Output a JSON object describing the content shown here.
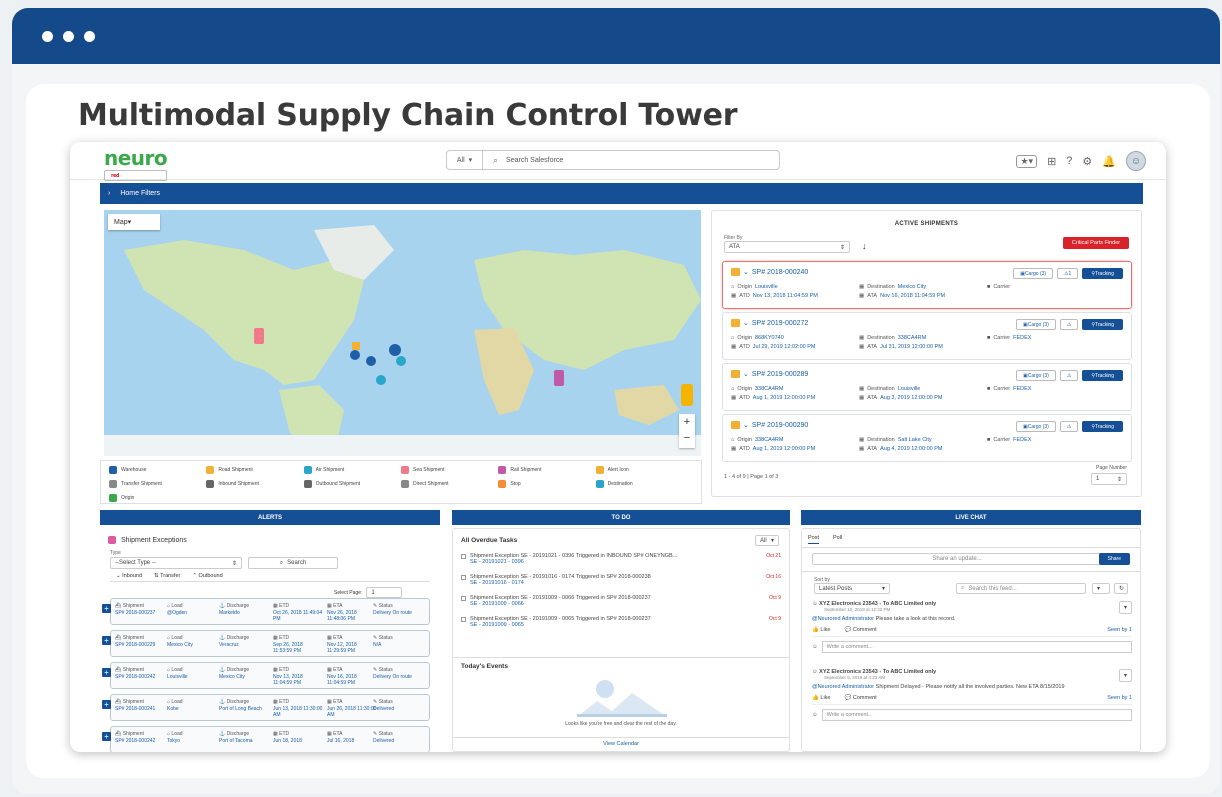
{
  "window": {
    "controls": [
      "dot",
      "dot",
      "dot"
    ]
  },
  "page_title": "Multimodal Supply Chain Control Tower",
  "app": {
    "logo_part1": "neuro",
    "logo_part2": "red",
    "search": {
      "scope": "All",
      "placeholder": "Search Salesforce"
    },
    "home_filters": "Home Filters"
  },
  "map": {
    "label": "Map",
    "zoom_in": "+",
    "zoom_out": "−",
    "legend": [
      "Warehouse",
      "Road Shipment",
      "Air Shipment",
      "Sea Shipment",
      "Rail Shipment",
      "Alert Icon",
      "Transfer Shipment",
      "Inbound Shipment",
      "Outbound Shipment",
      "Direct Shipment",
      "Stop",
      "Destination",
      "Origin"
    ],
    "legend_colors": [
      "#1f5fa8",
      "#f2b134",
      "#2ba6cb",
      "#f07a8a",
      "#c05aa8",
      "#f2b134",
      "#888888",
      "#666666",
      "#666666",
      "#888888",
      "#f28c38",
      "#2ba6cb",
      "#3aa84b"
    ]
  },
  "active_shipments": {
    "title": "ACTIVE SHIPMENTS",
    "filter_label": "Filter By",
    "filter_value": "ATA",
    "critical_button": "Critical Parts Finder",
    "rows": [
      {
        "id": "SP# 2018-000240",
        "cargo": "Cargo (3)",
        "alert": "1",
        "origin_label": "Origin",
        "origin": "Louisville",
        "dest_label": "Destination",
        "dest": "Mexico City",
        "atd_label": "ATD",
        "atd": "Nov 13, 2018 11:04:59 PM",
        "ata_label": "ATA",
        "ata": "Nov 16, 2018 11:04:59 PM",
        "carrier_label": "Carrier",
        "carrier": "",
        "highlight": true
      },
      {
        "id": "SP# 2019-000272",
        "cargo": "Cargo (3)",
        "alert": "",
        "origin_label": "Origin",
        "origin": "868KY0740",
        "dest_label": "Destination",
        "dest": "338CA4RM",
        "atd_label": "ATD",
        "atd": "Jul 29, 2019 12:02:00 PM",
        "ata_label": "ATA",
        "ata": "Jul 31, 2019 12:00:00 PM",
        "carrier_label": "Carrier",
        "carrier": "FEDEX",
        "highlight": false
      },
      {
        "id": "SP# 2019-000289",
        "cargo": "Cargo (3)",
        "alert": "",
        "origin_label": "Origin",
        "origin": "338CA4RM",
        "dest_label": "Destination",
        "dest": "Louisville",
        "atd_label": "ATD",
        "atd": "Aug 1, 2019 12:00:00 PM",
        "ata_label": "ATA",
        "ata": "Aug 3, 2019 12:00:00 PM",
        "carrier_label": "Carrier",
        "carrier": "FEDEX",
        "highlight": false
      },
      {
        "id": "SP# 2019-000290",
        "cargo": "Cargo (3)",
        "alert": "",
        "origin_label": "Origin",
        "origin": "338CA4RM",
        "dest_label": "Destination",
        "dest": "Salt Lake City",
        "atd_label": "ATD",
        "atd": "Aug 1, 2019 12:00:00 PM",
        "ata_label": "ATA",
        "ata": "Aug 4, 2019 12:00:00 PM",
        "carrier_label": "Carrier",
        "carrier": "FEDEX",
        "highlight": false
      }
    ],
    "tracking": "Tracking",
    "pagination": "1 - 4 of 9 | Page 1 of 3",
    "page_number_label": "Page Number",
    "page_number": "1"
  },
  "alerts": {
    "header": "ALERTS",
    "title": "Shipment Exceptions",
    "type_label": "Type",
    "type_value": "--Select Type --",
    "search": "Search",
    "tabs": [
      "Inbound",
      "Transfer",
      "Outbound"
    ],
    "select_page_label": "Select Page:",
    "select_page": "1",
    "rows": [
      {
        "shipment": "SP# 2018-000237",
        "load": "@Ogden",
        "discharge": "Marketdo",
        "etd": "Oct 26, 2018 11:49:04 PM",
        "eta": "Nov 26, 2018 11:48:06 PM",
        "status": "Delivery On route"
      },
      {
        "shipment": "SP# 2018-000229",
        "load": "Mexico City",
        "discharge": "Veracruz",
        "etd": "Sep 26, 2018 11:53:59 PM",
        "eta": "Nov 12, 2018 11:29:59 PM",
        "status": "N/A"
      },
      {
        "shipment": "SP# 2018-000242",
        "load": "Louisville",
        "discharge": "Mexico City",
        "etd": "Nov 13, 2018 11:04:59 PM",
        "eta": "Nov 16, 2018 11:04:59 PM",
        "status": "Delivery On route"
      },
      {
        "shipment": "SP# 2018-000241",
        "load": "Kobe",
        "discharge": "Port of Long Beach",
        "etd": "Jun 13, 2018 11:30:00 AM",
        "eta": "Jun 26, 2018 11:30:00 AM",
        "status": "Delivered"
      },
      {
        "shipment": "SP# 2018-000242",
        "load": "Tokyo",
        "discharge": "Port of Tacoma",
        "etd": "Jun 18, 2018",
        "eta": "Jul 16, 2018",
        "status": "Delivered"
      }
    ],
    "col_labels": {
      "shipment": "Shipment",
      "load": "Load",
      "discharge": "Discharge",
      "etd": "ETD",
      "eta": "ETA",
      "status": "Status"
    }
  },
  "todo": {
    "header": "TO DO",
    "title": "All Overdue Tasks",
    "filter": "All",
    "tasks": [
      {
        "text": "Shipment Exception SE - 20191021 - 0396 Triggered in INBOUND SP# ONEYNGB...",
        "sub": "SE - 20191021 - 0396",
        "date": "Oct 21"
      },
      {
        "text": "Shipment Exception SE - 20191016 - 0174 Triggered in SP# 2018-000238",
        "sub": "SE - 20191016 - 0174",
        "date": "Oct 16"
      },
      {
        "text": "Shipment Exception SE - 20191009 - 0066 Triggered in SP# 2018-000237",
        "sub": "SE - 20191009 - 0066",
        "date": "Oct 9"
      },
      {
        "text": "Shipment Exception SE - 20191009 - 0065 Triggered in SP# 2018-000237",
        "sub": "SE - 20191009 - 0065",
        "date": "Oct 9"
      }
    ],
    "events_title": "Today's Events",
    "events_empty": "Looks like you're free and clear the rest of the day.",
    "view_calendar": "View Calendar"
  },
  "chat": {
    "header": "LIVE CHAT",
    "tabs": [
      "Post",
      "Poll"
    ],
    "share_placeholder": "Share an update...",
    "share_button": "Share",
    "sort_label": "Sort by",
    "sort_value": "Latest Posts",
    "search_feed": "Search this feed...",
    "posts": [
      {
        "author": "XYZ Electronics 23543 - To ABC Limited only",
        "time": "September 10, 2019 at 12:22 PM",
        "mention": "@Neurored Administrator",
        "text": "Please take a look at this record.",
        "seen": "Seen by 1"
      },
      {
        "author": "XYZ Electronics 23543 - To ABC Limited only",
        "time": "September 6, 2019 at 4:23 AM",
        "mention": "@Neurored Administrator",
        "text": "Shipment Delayed - Please notify all the involved parties. New ETA 8/15/2019",
        "seen": "Seen by 1"
      }
    ],
    "like": "Like",
    "comment": "Comment",
    "write_comment": "Write a comment..."
  }
}
